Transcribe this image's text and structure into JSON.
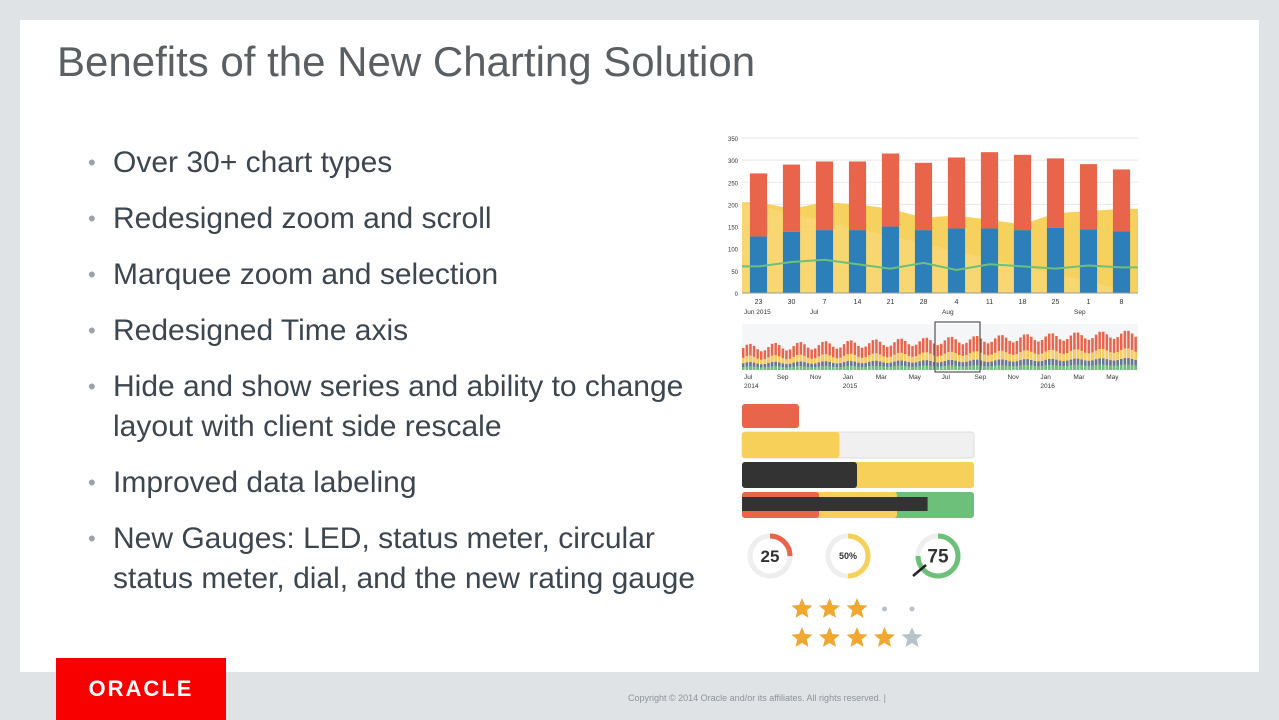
{
  "slide": {
    "title": "Benefits of the New Charting Solution",
    "bullets": [
      "Over 30+ chart types",
      "Redesigned zoom and scroll",
      "Marquee zoom and selection",
      "Redesigned Time axis",
      "Hide and show series and ability to change layout with client side rescale",
      "Improved data labeling",
      "New Gauges: LED, status meter, circular status meter, dial, and the new rating gauge"
    ]
  },
  "footer": {
    "logo_text": "ORACLE",
    "copyright": "Copyright © 2014 Oracle and/or its affiliates. All rights reserved.  |"
  },
  "colors": {
    "red": "#e8644a",
    "yellow": "#f7d05a",
    "blue": "#2c7fb8",
    "green": "#6cc07a",
    "dark": "#333333",
    "star": "#f0a830",
    "star_empty": "#b7c2cc"
  },
  "chart_data": [
    {
      "type": "bar",
      "title": "",
      "x_tick_labels": [
        "23",
        "30",
        "7",
        "14",
        "21",
        "28",
        "4",
        "11",
        "18",
        "25",
        "1",
        "8"
      ],
      "x_group_labels": [
        "Jun 2015",
        "Jul",
        "Aug",
        "Sep"
      ],
      "ylim": [
        0,
        350
      ],
      "y_ticks": [
        0,
        50,
        100,
        150,
        200,
        250,
        300,
        350
      ],
      "series": [
        {
          "type": "bar",
          "stack": "a",
          "values": [
            128,
            138,
            142,
            142,
            150,
            142,
            146,
            146,
            142,
            147,
            144,
            139
          ]
        },
        {
          "type": "bar",
          "stack": "a",
          "values": [
            142,
            152,
            155,
            155,
            165,
            152,
            160,
            172,
            170,
            157,
            147,
            140
          ]
        },
        {
          "type": "area",
          "values": [
            205,
            190,
            205,
            200,
            190,
            170,
            175,
            165,
            155,
            180,
            185,
            190
          ]
        },
        {
          "type": "line",
          "values": [
            60,
            70,
            75,
            65,
            55,
            68,
            52,
            65,
            60,
            55,
            62,
            58
          ]
        }
      ]
    },
    {
      "type": "bar",
      "title": "",
      "x_tick_labels": [
        "Jul",
        "Sep",
        "Nov",
        "Jan",
        "Mar",
        "May",
        "Jul",
        "Sep",
        "Nov",
        "Jan",
        "Mar",
        "May"
      ],
      "x_year_labels": [
        "2014",
        "2015",
        "2016"
      ]
    },
    {
      "type": "gauge",
      "status_meters": [
        0.42,
        0.8
      ],
      "circular_meters": [
        {
          "label": "25",
          "value": 25
        },
        {
          "label": "50%",
          "value": 50
        },
        {
          "label": "75",
          "value": 75
        }
      ],
      "ratings": [
        {
          "filled": 3,
          "max": 5
        },
        {
          "filled": 4,
          "max": 5
        }
      ]
    }
  ]
}
